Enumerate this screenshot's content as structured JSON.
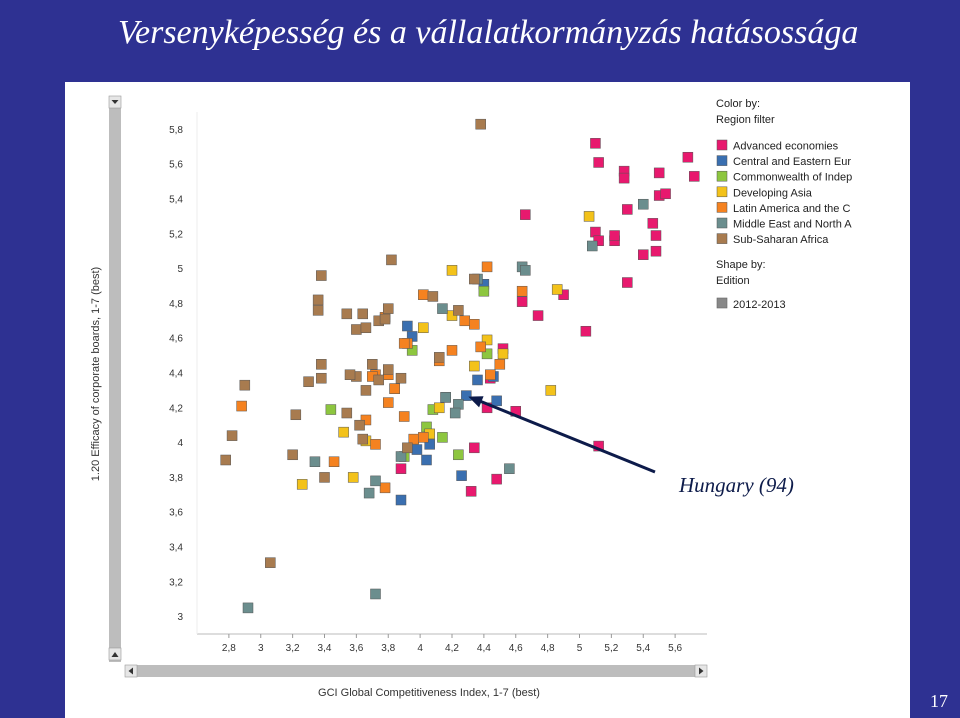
{
  "slide": {
    "title": "Versenyképesség és a vállalatkormányzás hatásossága",
    "page_number": "17",
    "background": "#2e3192"
  },
  "chart_data": {
    "type": "scatter",
    "xlabel": "GCI Global Competitiveness Index, 1-7 (best)",
    "ylabel": "1.20 Efficacy of corporate boards, 1-7 (best)",
    "xlim": [
      2.6,
      5.8
    ],
    "ylim": [
      2.9,
      5.9
    ],
    "x_ticks": [
      "2,8",
      "3",
      "3,2",
      "3,4",
      "3,6",
      "3,8",
      "4",
      "4,2",
      "4,4",
      "4,6",
      "4,8",
      "5",
      "5,2",
      "5,4",
      "5,6"
    ],
    "y_ticks": [
      "3",
      "3,2",
      "3,4",
      "3,6",
      "3,8",
      "4",
      "4,2",
      "4,4",
      "4,6",
      "4,8",
      "5",
      "5,2",
      "5,4",
      "5,6",
      "5,8"
    ],
    "grid": false,
    "legend_title_lines": [
      "Color by:",
      "Region filter"
    ],
    "shape_title_lines": [
      "Shape by:",
      "Edition"
    ],
    "shape_entry": {
      "name": "2012-2013",
      "color": "#888888"
    },
    "annotation": {
      "text": "Hungary (94)",
      "x": 4.29,
      "y": 4.27,
      "arrow_color": "#0d1b4a"
    },
    "series": [
      {
        "name": "Advanced economies",
        "color": "#e8196e",
        "points": [
          [
            5.1,
            5.72
          ],
          [
            5.12,
            5.61
          ],
          [
            5.28,
            5.56
          ],
          [
            5.28,
            5.52
          ],
          [
            5.5,
            5.55
          ],
          [
            5.68,
            5.64
          ],
          [
            5.72,
            5.53
          ],
          [
            5.5,
            5.42
          ],
          [
            5.54,
            5.43
          ],
          [
            5.3,
            5.34
          ],
          [
            5.1,
            5.21
          ],
          [
            5.12,
            5.16
          ],
          [
            5.22,
            5.16
          ],
          [
            5.22,
            5.19
          ],
          [
            5.4,
            5.08
          ],
          [
            5.46,
            5.26
          ],
          [
            5.48,
            5.19
          ],
          [
            5.48,
            5.1
          ],
          [
            4.66,
            5.31
          ],
          [
            5.3,
            4.92
          ],
          [
            4.9,
            4.85
          ],
          [
            4.64,
            4.81
          ],
          [
            4.74,
            4.73
          ],
          [
            5.04,
            4.64
          ],
          [
            4.52,
            4.54
          ],
          [
            4.44,
            4.37
          ],
          [
            4.42,
            4.2
          ],
          [
            4.6,
            4.18
          ],
          [
            4.34,
            3.97
          ],
          [
            4.48,
            3.79
          ],
          [
            4.32,
            3.72
          ],
          [
            5.12,
            3.98
          ],
          [
            4.12,
            4.48
          ],
          [
            3.88,
            3.85
          ]
        ]
      },
      {
        "name": "Central and Eastern Europe",
        "color": "#3a6fb0",
        "points": [
          [
            4.4,
            4.91
          ],
          [
            3.92,
            4.67
          ],
          [
            3.95,
            4.61
          ],
          [
            4.36,
            4.36
          ],
          [
            4.46,
            4.38
          ],
          [
            4.16,
            4.26
          ],
          [
            4.29,
            4.27
          ],
          [
            4.48,
            4.24
          ],
          [
            4.06,
            3.99
          ],
          [
            3.98,
            3.96
          ],
          [
            4.04,
            3.9
          ],
          [
            4.26,
            3.81
          ],
          [
            3.88,
            3.67
          ]
        ]
      },
      {
        "name": "Commonwealth of Independent States",
        "color": "#8dc63f",
        "points": [
          [
            4.4,
            4.87
          ],
          [
            3.95,
            4.53
          ],
          [
            4.42,
            4.51
          ],
          [
            3.84,
            4.31
          ],
          [
            3.44,
            4.19
          ],
          [
            4.08,
            4.19
          ],
          [
            4.14,
            4.03
          ],
          [
            4.04,
            4.09
          ],
          [
            3.9,
            3.92
          ],
          [
            4.24,
            3.93
          ]
        ]
      },
      {
        "name": "Developing Asia",
        "color": "#f3c21a",
        "points": [
          [
            4.2,
            4.99
          ],
          [
            4.86,
            4.88
          ],
          [
            5.06,
            5.3
          ],
          [
            4.2,
            4.73
          ],
          [
            4.02,
            4.66
          ],
          [
            4.42,
            4.59
          ],
          [
            4.34,
            4.44
          ],
          [
            4.52,
            4.51
          ],
          [
            4.12,
            4.2
          ],
          [
            4.06,
            4.05
          ],
          [
            3.52,
            4.06
          ],
          [
            3.66,
            4.01
          ],
          [
            3.58,
            3.8
          ],
          [
            3.26,
            3.76
          ],
          [
            4.82,
            4.3
          ]
        ]
      },
      {
        "name": "Latin America and the Caribbean",
        "color": "#f58220",
        "points": [
          [
            4.42,
            5.01
          ],
          [
            4.64,
            4.87
          ],
          [
            4.02,
            4.85
          ],
          [
            3.78,
            4.72
          ],
          [
            4.34,
            4.68
          ],
          [
            4.28,
            4.7
          ],
          [
            4.12,
            4.47
          ],
          [
            4.38,
            4.55
          ],
          [
            4.2,
            4.53
          ],
          [
            3.92,
            4.57
          ],
          [
            3.9,
            4.57
          ],
          [
            3.72,
            4.39
          ],
          [
            3.7,
            4.38
          ],
          [
            3.8,
            4.39
          ],
          [
            3.84,
            4.31
          ],
          [
            3.8,
            4.23
          ],
          [
            3.9,
            4.15
          ],
          [
            3.66,
            4.13
          ],
          [
            4.5,
            4.45
          ],
          [
            4.44,
            4.39
          ],
          [
            3.96,
            4.02
          ],
          [
            4.02,
            4.03
          ],
          [
            3.72,
            3.99
          ],
          [
            3.46,
            3.89
          ],
          [
            3.78,
            3.74
          ],
          [
            2.88,
            4.21
          ]
        ]
      },
      {
        "name": "Middle East and North Africa",
        "color": "#6b8e8e",
        "points": [
          [
            4.64,
            5.01
          ],
          [
            4.66,
            4.99
          ],
          [
            5.08,
            5.13
          ],
          [
            5.4,
            5.37
          ],
          [
            4.36,
            4.94
          ],
          [
            4.14,
            4.77
          ],
          [
            4.24,
            4.22
          ],
          [
            4.22,
            4.17
          ],
          [
            4.56,
            3.85
          ],
          [
            3.34,
            3.89
          ],
          [
            3.68,
            3.71
          ],
          [
            3.72,
            3.78
          ],
          [
            2.92,
            3.05
          ],
          [
            3.72,
            3.13
          ],
          [
            3.88,
            3.92
          ],
          [
            4.16,
            4.26
          ]
        ]
      },
      {
        "name": "Sub-Saharan Africa",
        "color": "#a87b4f",
        "points": [
          [
            4.38,
            5.83
          ],
          [
            3.82,
            5.05
          ],
          [
            3.38,
            4.96
          ],
          [
            4.34,
            4.94
          ],
          [
            4.08,
            4.84
          ],
          [
            3.36,
            4.82
          ],
          [
            3.36,
            4.76
          ],
          [
            3.54,
            4.74
          ],
          [
            3.64,
            4.74
          ],
          [
            3.8,
            4.77
          ],
          [
            4.24,
            4.76
          ],
          [
            3.6,
            4.65
          ],
          [
            3.66,
            4.66
          ],
          [
            3.74,
            4.7
          ],
          [
            3.78,
            4.71
          ],
          [
            3.38,
            4.45
          ],
          [
            3.7,
            4.45
          ],
          [
            3.74,
            4.36
          ],
          [
            3.6,
            4.38
          ],
          [
            3.38,
            4.37
          ],
          [
            3.3,
            4.35
          ],
          [
            3.8,
            4.42
          ],
          [
            3.88,
            4.37
          ],
          [
            3.66,
            4.3
          ],
          [
            2.9,
            4.33
          ],
          [
            3.54,
            4.17
          ],
          [
            3.62,
            4.1
          ],
          [
            3.22,
            4.16
          ],
          [
            3.2,
            3.93
          ],
          [
            3.4,
            3.8
          ],
          [
            2.78,
            3.9
          ],
          [
            2.82,
            4.04
          ],
          [
            3.64,
            4.02
          ],
          [
            3.06,
            3.31
          ],
          [
            4.12,
            4.49
          ],
          [
            3.56,
            4.39
          ],
          [
            3.92,
            3.97
          ]
        ]
      }
    ]
  },
  "legend_display": [
    "Advanced economies",
    "Central and Eastern Eur",
    "Commonwealth of Indep",
    "Developing Asia",
    "Latin America and the C",
    "Middle East and North A",
    "Sub-Saharan Africa"
  ]
}
